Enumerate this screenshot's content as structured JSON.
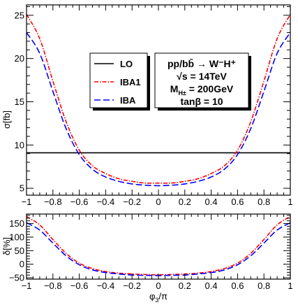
{
  "chart_data": [
    {
      "type": "line",
      "ylabel": "σ[fb]",
      "xlim": [
        -1,
        1
      ],
      "ylim": [
        4.2,
        26.2
      ],
      "yticks": [
        "5",
        "10",
        "15",
        "20",
        "25"
      ],
      "xticks": [
        "−1",
        "−0.8",
        "−0.6",
        "−0.4",
        "−0.2",
        "0",
        "0.2",
        "0.4",
        "0.6",
        "0.8",
        "1"
      ],
      "legend_position": "center",
      "series": [
        {
          "name": "LO",
          "style": "solid",
          "color": "#000000",
          "x": [
            -1,
            -0.9,
            -0.8,
            -0.7,
            -0.6,
            -0.5,
            -0.4,
            -0.3,
            -0.2,
            -0.1,
            0,
            0.1,
            0.2,
            0.3,
            0.4,
            0.5,
            0.6,
            0.7,
            0.8,
            0.9,
            1
          ],
          "values": [
            9.1,
            9.1,
            9.1,
            9.1,
            9.1,
            9.1,
            9.1,
            9.1,
            9.1,
            9.1,
            9.1,
            9.1,
            9.1,
            9.1,
            9.1,
            9.1,
            9.1,
            9.1,
            9.1,
            9.1,
            9.1
          ]
        },
        {
          "name": "IBA1",
          "style": "dashdot",
          "color": "#ff0000",
          "x": [
            -1,
            -0.9,
            -0.8,
            -0.7,
            -0.6,
            -0.5,
            -0.4,
            -0.3,
            -0.2,
            -0.1,
            0,
            0.1,
            0.2,
            0.3,
            0.4,
            0.5,
            0.6,
            0.7,
            0.8,
            0.9,
            1
          ],
          "values": [
            25.1,
            22.3,
            17.4,
            12.7,
            9.4,
            7.6,
            6.7,
            6.1,
            5.8,
            5.6,
            5.6,
            5.6,
            5.8,
            6.1,
            6.7,
            7.6,
            9.4,
            12.7,
            17.4,
            22.3,
            25.1
          ]
        },
        {
          "name": "IBA",
          "style": "dashed",
          "color": "#0000ff",
          "x": [
            -1,
            -0.9,
            -0.8,
            -0.7,
            -0.6,
            -0.5,
            -0.4,
            -0.3,
            -0.2,
            -0.1,
            0,
            0.1,
            0.2,
            0.3,
            0.4,
            0.5,
            0.6,
            0.7,
            0.8,
            0.9,
            1
          ],
          "values": [
            23.0,
            20.6,
            16.2,
            11.9,
            8.9,
            7.2,
            6.3,
            5.8,
            5.5,
            5.35,
            5.3,
            5.35,
            5.5,
            5.8,
            6.3,
            7.2,
            8.9,
            11.9,
            16.2,
            20.6,
            23.0
          ]
        }
      ],
      "annotation_lines": [
        "pp/bb̄ → W⁻H⁺",
        "√s = 14TeV",
        "M",
        "H±",
        " = 200GeV",
        "tanβ = 10"
      ]
    },
    {
      "type": "line",
      "xlabel_main": "φ",
      "xlabel_sub": "3",
      "xlabel_tail": "/π",
      "ylabel": "δ[%]",
      "xlim": [
        -1,
        1
      ],
      "ylim": [
        -55,
        185
      ],
      "yticks": [
        "−50",
        "0",
        "50",
        "100",
        "150"
      ],
      "xticks": [
        "−1",
        "−0.8",
        "−0.6",
        "−0.4",
        "−0.2",
        "0",
        "0.2",
        "0.4",
        "0.6",
        "0.8",
        "1"
      ],
      "series": [
        {
          "name": "IBA1",
          "style": "dashdot",
          "color": "#ff0000",
          "x": [
            -1,
            -0.9,
            -0.8,
            -0.7,
            -0.6,
            -0.5,
            -0.4,
            -0.3,
            -0.2,
            -0.1,
            0,
            0.1,
            0.2,
            0.3,
            0.4,
            0.5,
            0.6,
            0.7,
            0.8,
            0.9,
            1
          ],
          "values": [
            176,
            145,
            91,
            40,
            4,
            -16,
            -27,
            -33,
            -36,
            -38,
            -39,
            -38,
            -36,
            -33,
            -27,
            -16,
            4,
            40,
            91,
            145,
            176
          ]
        },
        {
          "name": "IBA",
          "style": "dashed",
          "color": "#0000ff",
          "x": [
            -1,
            -0.9,
            -0.8,
            -0.7,
            -0.6,
            -0.5,
            -0.4,
            -0.3,
            -0.2,
            -0.1,
            0,
            0.1,
            0.2,
            0.3,
            0.4,
            0.5,
            0.6,
            0.7,
            0.8,
            0.9,
            1
          ],
          "values": [
            153,
            126,
            78,
            31,
            -2,
            -21,
            -31,
            -36,
            -40,
            -41,
            -42,
            -41,
            -40,
            -36,
            -31,
            -21,
            -2,
            31,
            78,
            126,
            153
          ]
        }
      ]
    }
  ]
}
